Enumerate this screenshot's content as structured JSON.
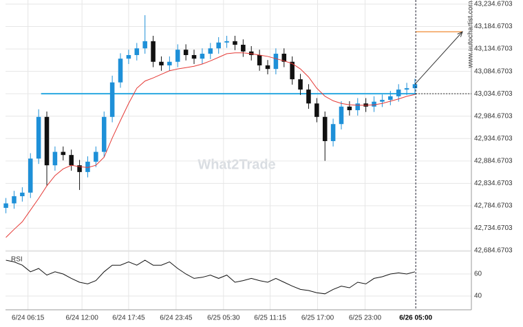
{
  "chart_data": {
    "type": "candlestick",
    "watermark": "What2Trade",
    "source": "www.autochartist.com",
    "indicator_label": "RSI",
    "up_color": "#1e90d8",
    "down_color": "#111111",
    "ma_color": "#e53935",
    "level_color": "#29a8e0",
    "target_color": "#f08a30",
    "open": [
      42780,
      42790,
      42806,
      42814,
      42890,
      42983,
      42875,
      42905,
      42898,
      42875,
      42860,
      42883,
      42905,
      42983,
      43060,
      43113,
      43121,
      43136,
      43152,
      43106,
      43098,
      43106,
      43133,
      43121,
      43113,
      43124,
      43136,
      43149,
      43152,
      43144,
      43129,
      43121,
      43098,
      43090,
      43124,
      43106,
      43067,
      43044,
      43013,
      42983,
      42929,
      42967,
      43006,
      42998,
      43013,
      43006,
      43017,
      43021,
      43029,
      43044,
      43047
    ],
    "high": [
      42802,
      42818,
      42826,
      42902,
      43000,
      42995,
      42917,
      42917,
      42910,
      42887,
      42895,
      42917,
      42995,
      43075,
      43125,
      43133,
      43148,
      43210,
      43164,
      43118,
      43118,
      43145,
      43145,
      43133,
      43136,
      43148,
      43161,
      43164,
      43164,
      43156,
      43141,
      43133,
      43110,
      43136,
      43136,
      43118,
      43079,
      43056,
      43025,
      42995,
      42979,
      43018,
      43018,
      43025,
      43025,
      43029,
      43033,
      43041,
      43056,
      43059,
      43068
    ],
    "low": [
      42768,
      42778,
      42794,
      42802,
      42878,
      42830,
      42863,
      42886,
      42863,
      42820,
      42848,
      42871,
      42893,
      42971,
      43048,
      43101,
      43109,
      43124,
      43094,
      43086,
      43086,
      43094,
      43109,
      43101,
      43101,
      43112,
      43124,
      43137,
      43132,
      43117,
      43109,
      43086,
      43078,
      43078,
      43094,
      43055,
      43032,
      43001,
      42971,
      42885,
      42917,
      42955,
      42986,
      42986,
      42994,
      42994,
      43005,
      43009,
      43017,
      43032,
      43035
    ],
    "close": [
      42790,
      42806,
      42814,
      42890,
      42983,
      42875,
      42905,
      42898,
      42875,
      42860,
      42883,
      42905,
      42983,
      43060,
      43113,
      43121,
      43136,
      43152,
      43106,
      43098,
      43106,
      43133,
      43121,
      43113,
      43124,
      43136,
      43149,
      43152,
      43144,
      43129,
      43121,
      43098,
      43090,
      43124,
      43106,
      43067,
      43044,
      43013,
      42983,
      42929,
      42967,
      43006,
      42998,
      43013,
      43006,
      43017,
      43021,
      43029,
      43044,
      43047,
      43056
    ],
    "ma": [
      42714,
      42732,
      42749,
      42775,
      42801,
      42829,
      42852,
      42867,
      42875,
      42872,
      42870,
      42875,
      42893,
      42936,
      42975,
      43013,
      43047,
      43063,
      43070,
      43078,
      43086,
      43090,
      43093,
      43096,
      43101,
      43108,
      43116,
      43124,
      43126,
      43126,
      43124,
      43121,
      43118,
      43113,
      43108,
      43102,
      43090,
      43072,
      43047,
      43029,
      43019,
      43013,
      43010,
      43009,
      43009,
      43010,
      43013,
      43018,
      43023,
      43029,
      43033
    ],
    "rsi": [
      72.5,
      71,
      68,
      62,
      65,
      59,
      62,
      60,
      56,
      52.5,
      51,
      54,
      62,
      68,
      68,
      71,
      68,
      72.5,
      68,
      68,
      71,
      65,
      60,
      56,
      57,
      59,
      56,
      59,
      52.5,
      54,
      56,
      54,
      52.5,
      56,
      52.5,
      49,
      46,
      45,
      43,
      42,
      46,
      49,
      47.5,
      52.5,
      51,
      56,
      57.5,
      60,
      61,
      60,
      62
    ],
    "level": 43034.6703,
    "target": 43173,
    "xlim": [
      -0.05,
      56.9
    ],
    "xticks": [
      {
        "value": 2.7,
        "label": "6/24 06:15"
      },
      {
        "value": 9.3,
        "label": "6/24 12:00"
      },
      {
        "value": 15.0,
        "label": "6/24 17:45"
      },
      {
        "value": 20.8,
        "label": "6/24 23:45"
      },
      {
        "value": 26.6,
        "label": "6/25 05:30"
      },
      {
        "value": 32.3,
        "label": "6/25 11:15"
      },
      {
        "value": 38.1,
        "label": "6/25 17:00"
      },
      {
        "value": 43.9,
        "label": "6/25 23:00"
      },
      {
        "value": 50.1,
        "label": "6/26 05:00"
      }
    ],
    "ylim": [
      42684.6703,
      43234.6703
    ],
    "yticks": [
      {
        "value": 43234.6703,
        "label": "43,234.6703"
      },
      {
        "value": 43184.6703,
        "label": "43,184.6703"
      },
      {
        "value": 43134.6703,
        "label": "43,134.6703"
      },
      {
        "value": 43084.6703,
        "label": "43,084.6703"
      },
      {
        "value": 43034.6703,
        "label": "43,034.6703"
      },
      {
        "value": 42984.6703,
        "label": "42,984.6703"
      },
      {
        "value": 42934.6703,
        "label": "42,934.6703"
      },
      {
        "value": 42884.6703,
        "label": "42,884.6703"
      },
      {
        "value": 42834.6703,
        "label": "42,834.6703"
      },
      {
        "value": 42784.6703,
        "label": "42,784.6703"
      },
      {
        "value": 42734.6703,
        "label": "42,734.6703"
      },
      {
        "value": 42684.6703,
        "label": "42,684.6703"
      }
    ],
    "rsi_lim": [
      27.5,
      80
    ],
    "rsi_ticks": [
      60,
      40
    ],
    "grid": true
  }
}
